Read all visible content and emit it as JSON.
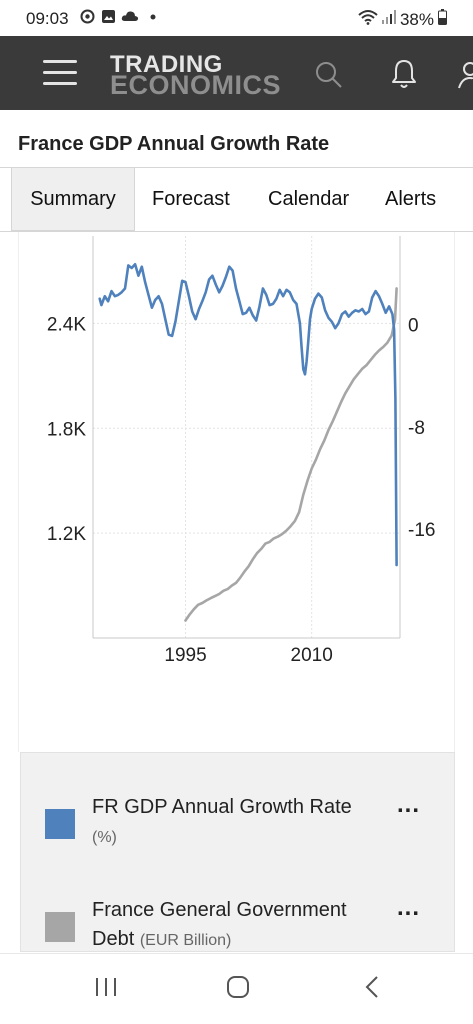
{
  "status_bar": {
    "time": "09:03",
    "battery": "38%",
    "left_icons": [
      "whatsapp-icon",
      "gallery-icon",
      "cloud-icon",
      "dot-icon"
    ],
    "right_icons": [
      "wifi-icon",
      "signal-icon",
      "battery-icon"
    ]
  },
  "header": {
    "logo_top": "TRADING",
    "logo_bottom": "ECONOMICS",
    "icons": [
      "menu-icon",
      "search-icon",
      "bell-icon",
      "user-icon"
    ],
    "background": "#3a3a3a"
  },
  "page": {
    "title": "France GDP Annual Growth Rate"
  },
  "tabs": [
    {
      "label": "Summary",
      "active": true
    },
    {
      "label": "Forecast"
    },
    {
      "label": "Calendar"
    },
    {
      "label": "Alerts"
    }
  ],
  "chart_data": {
    "type": "line",
    "x_ticks": [
      "1995",
      "2010"
    ],
    "xlim": [
      1984,
      2020.5
    ],
    "left_axis": {
      "ticks": [
        "2.4K",
        "1.8K",
        "1.2K"
      ],
      "ylim": [
        600,
        2900
      ]
    },
    "right_axis": {
      "ticks": [
        "0",
        "-8",
        "-16"
      ],
      "ylim": [
        -24.5,
        6.9
      ]
    },
    "grid": true,
    "legend_position": "below",
    "series": [
      {
        "name": "FR GDP Annual Growth Rate",
        "unit": "(%)",
        "axis": "right",
        "color": "#4f81bd",
        "points": [
          [
            1984.8,
            2.0
          ],
          [
            1985.0,
            1.5
          ],
          [
            1985.4,
            2.2
          ],
          [
            1985.8,
            1.8
          ],
          [
            1986.2,
            2.6
          ],
          [
            1986.6,
            2.2
          ],
          [
            1987.0,
            2.3
          ],
          [
            1987.4,
            2.5
          ],
          [
            1987.8,
            2.8
          ],
          [
            1988.2,
            4.6
          ],
          [
            1988.6,
            4.4
          ],
          [
            1989.0,
            4.7
          ],
          [
            1989.4,
            3.8
          ],
          [
            1989.8,
            4.5
          ],
          [
            1990.2,
            3.3
          ],
          [
            1990.6,
            2.3
          ],
          [
            1991.0,
            1.3
          ],
          [
            1991.4,
            1.9
          ],
          [
            1991.8,
            2.2
          ],
          [
            1992.2,
            1.6
          ],
          [
            1992.6,
            0.4
          ],
          [
            1993.0,
            -0.8
          ],
          [
            1993.4,
            -0.9
          ],
          [
            1993.8,
            0.2
          ],
          [
            1994.2,
            1.8
          ],
          [
            1994.6,
            3.4
          ],
          [
            1995.0,
            3.3
          ],
          [
            1995.4,
            2.2
          ],
          [
            1995.8,
            1.0
          ],
          [
            1996.2,
            0.4
          ],
          [
            1996.6,
            1.2
          ],
          [
            1997.0,
            1.8
          ],
          [
            1997.4,
            2.5
          ],
          [
            1997.8,
            3.5
          ],
          [
            1998.2,
            3.8
          ],
          [
            1998.6,
            3.1
          ],
          [
            1999.0,
            2.5
          ],
          [
            1999.4,
            3.0
          ],
          [
            1999.8,
            3.7
          ],
          [
            2000.2,
            4.5
          ],
          [
            2000.6,
            4.2
          ],
          [
            2001.0,
            2.8
          ],
          [
            2001.4,
            1.8
          ],
          [
            2001.8,
            0.8
          ],
          [
            2002.2,
            0.9
          ],
          [
            2002.6,
            1.3
          ],
          [
            2003.0,
            0.7
          ],
          [
            2003.4,
            0.3
          ],
          [
            2003.8,
            1.4
          ],
          [
            2004.2,
            2.8
          ],
          [
            2004.6,
            2.3
          ],
          [
            2005.0,
            1.5
          ],
          [
            2005.4,
            1.6
          ],
          [
            2005.8,
            2.0
          ],
          [
            2006.2,
            2.7
          ],
          [
            2006.6,
            2.2
          ],
          [
            2007.0,
            2.7
          ],
          [
            2007.4,
            2.5
          ],
          [
            2007.8,
            1.9
          ],
          [
            2008.2,
            1.6
          ],
          [
            2008.6,
            0.1
          ],
          [
            2008.8,
            -1.8
          ],
          [
            2009.0,
            -3.5
          ],
          [
            2009.2,
            -3.9
          ],
          [
            2009.4,
            -2.9
          ],
          [
            2009.6,
            -1.3
          ],
          [
            2009.8,
            0.4
          ],
          [
            2010.0,
            1.2
          ],
          [
            2010.4,
            2.0
          ],
          [
            2010.8,
            2.4
          ],
          [
            2011.2,
            2.1
          ],
          [
            2011.6,
            1.1
          ],
          [
            2012.0,
            0.5
          ],
          [
            2012.4,
            0.2
          ],
          [
            2012.8,
            -0.3
          ],
          [
            2013.2,
            0.1
          ],
          [
            2013.6,
            0.8
          ],
          [
            2014.0,
            1.0
          ],
          [
            2014.4,
            0.6
          ],
          [
            2014.8,
            0.9
          ],
          [
            2015.2,
            1.1
          ],
          [
            2015.6,
            1.0
          ],
          [
            2016.0,
            1.2
          ],
          [
            2016.4,
            0.8
          ],
          [
            2016.8,
            1.0
          ],
          [
            2017.2,
            2.1
          ],
          [
            2017.6,
            2.6
          ],
          [
            2018.0,
            2.2
          ],
          [
            2018.4,
            1.6
          ],
          [
            2018.8,
            0.9
          ],
          [
            2019.2,
            1.4
          ],
          [
            2019.6,
            0.8
          ],
          [
            2019.8,
            -0.4
          ],
          [
            2019.95,
            -5.8
          ],
          [
            2020.1,
            -18.8
          ]
        ]
      },
      {
        "name": "France General Government Debt",
        "unit": "(EUR Billion)",
        "axis": "left",
        "color": "#a6a6a6",
        "points": [
          [
            1995.0,
            700
          ],
          [
            1995.5,
            735
          ],
          [
            1996.0,
            765
          ],
          [
            1996.5,
            790
          ],
          [
            1997.0,
            800
          ],
          [
            1997.5,
            815
          ],
          [
            1998.0,
            828
          ],
          [
            1998.5,
            840
          ],
          [
            1999.0,
            852
          ],
          [
            1999.5,
            870
          ],
          [
            2000.0,
            880
          ],
          [
            2000.5,
            900
          ],
          [
            2001.0,
            915
          ],
          [
            2001.5,
            945
          ],
          [
            2002.0,
            980
          ],
          [
            2002.5,
            1010
          ],
          [
            2003.0,
            1050
          ],
          [
            2003.5,
            1085
          ],
          [
            2004.0,
            1110
          ],
          [
            2004.5,
            1140
          ],
          [
            2005.0,
            1150
          ],
          [
            2005.5,
            1170
          ],
          [
            2006.0,
            1180
          ],
          [
            2006.5,
            1195
          ],
          [
            2007.0,
            1215
          ],
          [
            2007.5,
            1240
          ],
          [
            2008.0,
            1270
          ],
          [
            2008.5,
            1320
          ],
          [
            2009.0,
            1420
          ],
          [
            2009.5,
            1500
          ],
          [
            2010.0,
            1570
          ],
          [
            2010.5,
            1620
          ],
          [
            2011.0,
            1680
          ],
          [
            2011.5,
            1730
          ],
          [
            2012.0,
            1790
          ],
          [
            2012.5,
            1840
          ],
          [
            2013.0,
            1895
          ],
          [
            2013.5,
            1950
          ],
          [
            2014.0,
            2000
          ],
          [
            2014.5,
            2040
          ],
          [
            2015.0,
            2080
          ],
          [
            2015.5,
            2110
          ],
          [
            2016.0,
            2140
          ],
          [
            2016.5,
            2160
          ],
          [
            2017.0,
            2190
          ],
          [
            2017.5,
            2220
          ],
          [
            2018.0,
            2245
          ],
          [
            2018.5,
            2265
          ],
          [
            2019.0,
            2290
          ],
          [
            2019.5,
            2330
          ],
          [
            2019.9,
            2420
          ],
          [
            2020.1,
            2600
          ]
        ]
      }
    ]
  },
  "legend": {
    "items": [
      {
        "name": "FR GDP Annual Growth Rate",
        "unit": "(%)",
        "color": "#4f81bd",
        "more": "..."
      },
      {
        "name": "France General Government Debt",
        "unit": "(EUR Billion)",
        "color": "#a6a6a6",
        "more": "..."
      }
    ]
  },
  "nav_bar": {
    "icons": [
      "recents-icon",
      "home-icon",
      "back-icon"
    ]
  }
}
